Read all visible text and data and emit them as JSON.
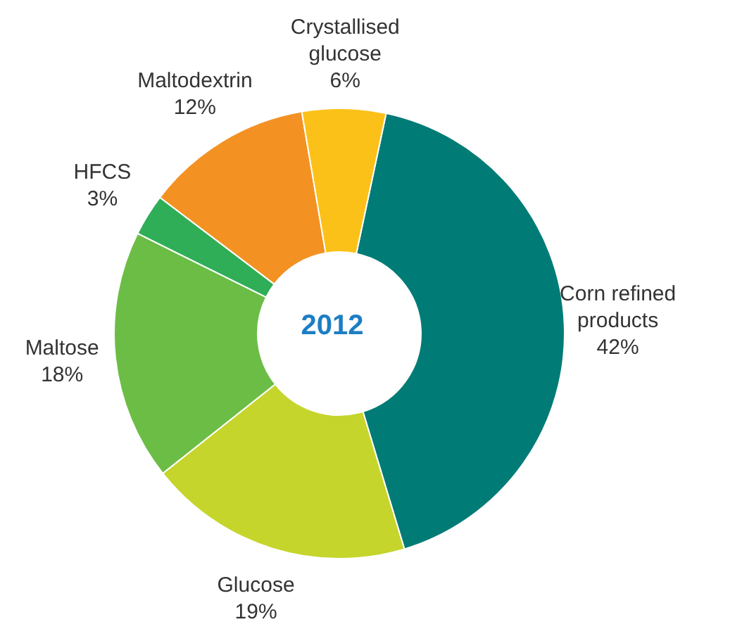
{
  "chart_data": {
    "type": "donut",
    "title": "2012",
    "categories": [
      "Corn refined products",
      "Glucose",
      "Maltose",
      "HFCS",
      "Maltodextrin",
      "Crystallised glucose"
    ],
    "values": [
      42,
      19,
      18,
      3,
      12,
      6
    ],
    "value_labels": [
      "42%",
      "19%",
      "18%",
      "3%",
      "12%",
      "6%"
    ],
    "colors": [
      "#007b76",
      "#c5d52b",
      "#6cbd45",
      "#2fae57",
      "#f39223",
      "#fcc118"
    ],
    "legend": false
  }
}
